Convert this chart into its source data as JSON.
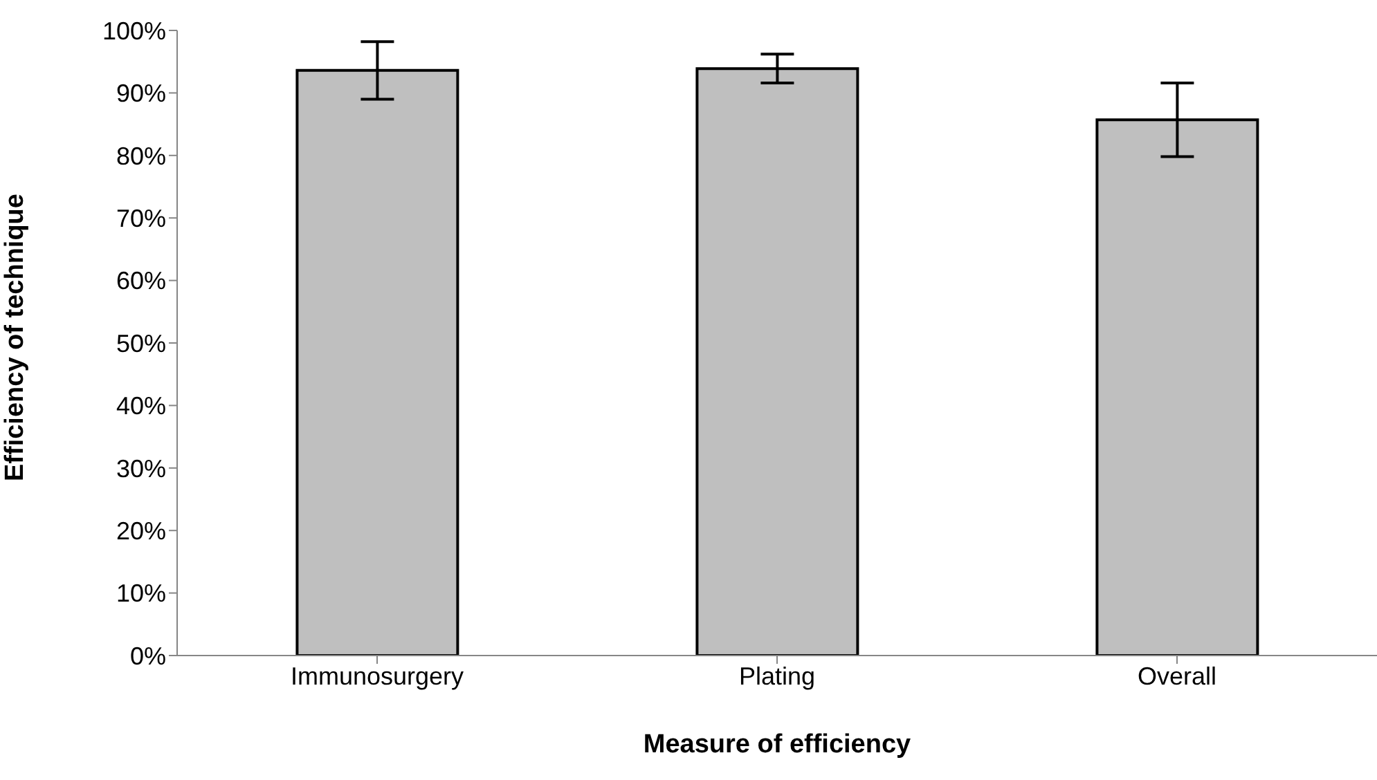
{
  "chart_data": {
    "type": "bar",
    "xlabel": "Measure of efficiency",
    "ylabel": "Efficiency of technique",
    "categories": [
      "Immunosurgery",
      "Plating",
      "Overall"
    ],
    "values": [
      93.6,
      93.9,
      85.7
    ],
    "errors": [
      4.6,
      2.3,
      5.9
    ],
    "color": "#bfbfbf",
    "ylim": [
      0,
      100
    ],
    "yticks": [
      {
        "value": 0,
        "label": "0%"
      },
      {
        "value": 10,
        "label": "10%"
      },
      {
        "value": 20,
        "label": "20%"
      },
      {
        "value": 30,
        "label": "30%"
      },
      {
        "value": 40,
        "label": "40%"
      },
      {
        "value": 50,
        "label": "50%"
      },
      {
        "value": 60,
        "label": "60%"
      },
      {
        "value": 70,
        "label": "70%"
      },
      {
        "value": 80,
        "label": "80%"
      },
      {
        "value": 90,
        "label": "90%"
      },
      {
        "value": 100,
        "label": "100%"
      }
    ],
    "grid": false,
    "legend": false
  }
}
